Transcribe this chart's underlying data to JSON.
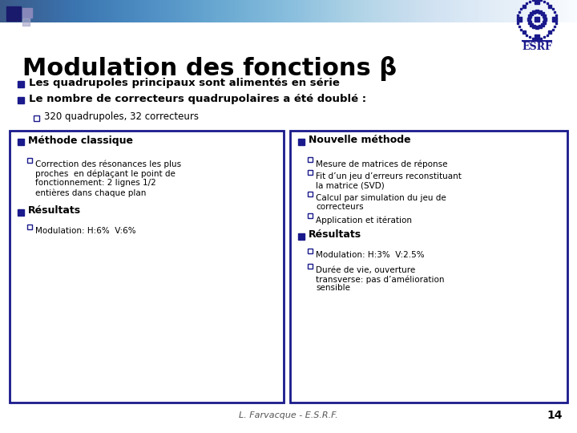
{
  "title": "Modulation des fonctions β",
  "title_fontsize": 22,
  "background_color": "#ffffff",
  "slide_number": "14",
  "footer_text": "L. Farvacque - E.S.R.F.",
  "bullet_color": "#1a1a8c",
  "box_border_color": "#1a1a8c",
  "main_bullets": [
    "Les quadrupoles principaux sont alimentés en série",
    "Le nombre de correcteurs quadrupolaires a été doublé :"
  ],
  "sub_bullet": "320 quadrupoles, 32 correcteurs",
  "left_box_title": "Méthode classique",
  "left_box_bullet1_lines": [
    "Correction des résonances les plus",
    "proches  en déplaçant le point de",
    "fonctionnement: 2 lignes 1/2",
    "entières dans chaque plan"
  ],
  "left_box_section2": "Résultats",
  "left_box_bullet2": "Modulation: H:6%  V:6%",
  "right_box_title": "Nouvelle méthode",
  "right_box_bullets": [
    "Mesure de matrices de réponse",
    "Fit d’un jeu d’erreurs reconstituant\nla matrice (SVD)",
    "Calcul par simulation du jeu de\ncorrecteurs",
    "Application et itération"
  ],
  "right_box_section2": "Résultats",
  "right_box_result_bullets": [
    "Modulation: H:3%  V:2.5%",
    "Durée de vie, ouverture\ntransverse: pas d’amélioration\nsensible"
  ]
}
